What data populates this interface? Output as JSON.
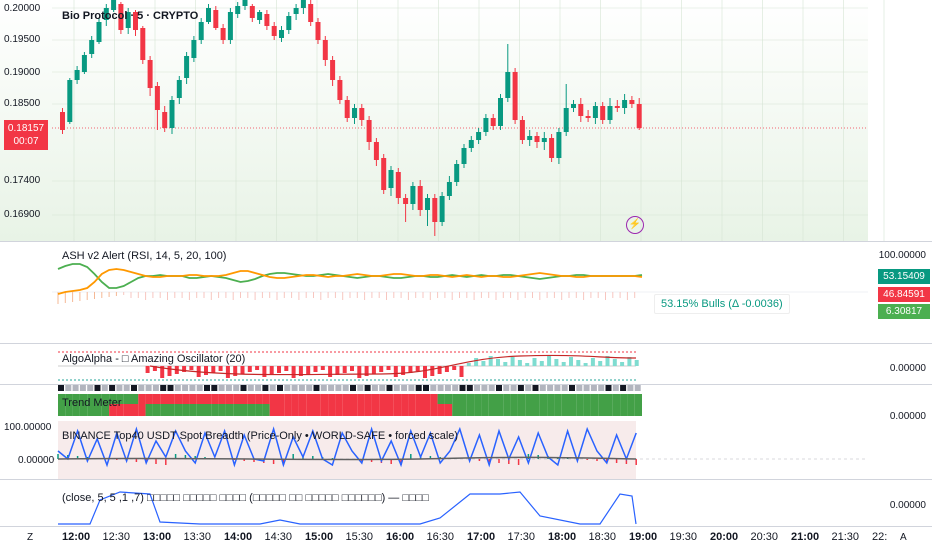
{
  "header": {
    "title": "Bio Protocol · 5 · CRYPTO"
  },
  "price_axis": [
    "0.20000",
    "0.19500",
    "0.19000",
    "0.18500",
    "0.17400",
    "0.16900"
  ],
  "price_tag": {
    "price": "0.18157",
    "countdown": "00:07"
  },
  "ash": {
    "title": "ASH v2 Alert (RSI, 14, 5, 20, 100)",
    "axis_top": "100.00000",
    "tags": [
      "53.15409",
      "46.84591",
      "6.30817"
    ],
    "bulls_label": "53.15% Bulls (Δ -0.0036)"
  },
  "algo": {
    "title": "AlgoAlpha - □ Amazing Oscillator (20)",
    "axis": "0.00000"
  },
  "trend": {
    "title": "Trend Meter",
    "axis": "0.00000"
  },
  "breadth": {
    "title": "BINANCE Top40 USDT Spot Breadth (Price-Only • WORLD-SAFE • forced scale)",
    "axis_top": "100.00000",
    "axis_mid": "0.00000"
  },
  "last": {
    "title": "(close, 5, 5 ,1 ,7) □□□□□ □□□□□ □□□□ (□□□□□ □□ □□□□□ □□□□□□) — □□□□",
    "axis": "0.00000"
  },
  "time_axis": {
    "labels": [
      "12:00",
      "12:30",
      "13:00",
      "13:30",
      "14:00",
      "14:30",
      "15:00",
      "15:30",
      "16:00",
      "16:30",
      "17:00",
      "17:30",
      "18:00",
      "18:30",
      "19:00",
      "19:30",
      "20:00",
      "20:30",
      "21:00",
      "21:30",
      "22:"
    ],
    "bold": [
      "12:00",
      "13:00",
      "14:00",
      "15:00",
      "16:00",
      "17:00",
      "18:00",
      "19:00",
      "20:00",
      "21:00"
    ],
    "left_icon": "Z",
    "right_icon": "A"
  },
  "colors": {
    "up": "#089981",
    "down": "#f23645",
    "bg_green": "#e3f2e1"
  },
  "icons": {
    "alert": "lightning-icon"
  }
}
